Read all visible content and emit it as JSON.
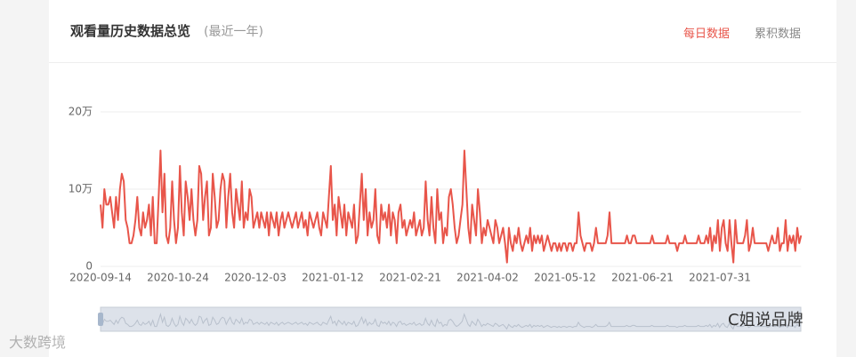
{
  "header": {
    "title": "观看量历史数据总览",
    "subtitle": "(最近一年)",
    "tabs": [
      "每日数据",
      "累积数据"
    ],
    "active_tab": 0
  },
  "watermarks": [
    "大数跨境",
    "C姐说品牌"
  ],
  "chart_data": {
    "type": "line",
    "color": "#e8554a",
    "categories": [
      "2020-09-14",
      null,
      null,
      null,
      null,
      null,
      null,
      null,
      null,
      null,
      null,
      null,
      null,
      null,
      null,
      null,
      null,
      null,
      null,
      null,
      null,
      null,
      null,
      null,
      null,
      null,
      null,
      null,
      null,
      null,
      null,
      null,
      null,
      null,
      null,
      null,
      null,
      null,
      null,
      null,
      "2020-10-24",
      null,
      null,
      null,
      null,
      null,
      null,
      null,
      null,
      null,
      null,
      null,
      null,
      null,
      null,
      null,
      null,
      null,
      null,
      null,
      null,
      null,
      null,
      null,
      null,
      null,
      null,
      null,
      null,
      null,
      null,
      null,
      null,
      null,
      null,
      null,
      null,
      null,
      null,
      null,
      "2020-12-03",
      null,
      null,
      null,
      null,
      null,
      null,
      null,
      null,
      null,
      null,
      null,
      null,
      null,
      null,
      null,
      null,
      null,
      null,
      null,
      null,
      null,
      null,
      null,
      null,
      null,
      null,
      null,
      null,
      null,
      null,
      null,
      null,
      null,
      null,
      null,
      null,
      null,
      null,
      null,
      "2021-01-12",
      null,
      null,
      null,
      null,
      null,
      null,
      null,
      null,
      null,
      null,
      null,
      null,
      null,
      null,
      null,
      null,
      null,
      null,
      null,
      null,
      null,
      null,
      null,
      null,
      null,
      null,
      null,
      null,
      null,
      null,
      null,
      null,
      null,
      null,
      null,
      null,
      null,
      null,
      null,
      "2021-02-21",
      null,
      null,
      null,
      null,
      null,
      null,
      null,
      null,
      null,
      null,
      null,
      null,
      null,
      null,
      null,
      null,
      null,
      null,
      null,
      null,
      null,
      null,
      null,
      null,
      null,
      null,
      null,
      null,
      null,
      null,
      null,
      null,
      null,
      null,
      null,
      null,
      null,
      null,
      null,
      "2021-04-02",
      null,
      null,
      null,
      null,
      null,
      null,
      null,
      null,
      null,
      null,
      null,
      null,
      null,
      null,
      null,
      null,
      null,
      null,
      null,
      null,
      null,
      null,
      null,
      null,
      null,
      null,
      null,
      null,
      null,
      null,
      null,
      null,
      null,
      null,
      null,
      null,
      null,
      null,
      null,
      "2021-05-12",
      null,
      null,
      null,
      null,
      null,
      null,
      null,
      null,
      null,
      null,
      null,
      null,
      null,
      null,
      null,
      null,
      null,
      null,
      null,
      null,
      null,
      null,
      null,
      null,
      null,
      null,
      null,
      null,
      null,
      null,
      null,
      null,
      null,
      null,
      null,
      null,
      null,
      null,
      null,
      "2021-06-21",
      null,
      null,
      null,
      null,
      null,
      null,
      null,
      null,
      null,
      null,
      null,
      null,
      null,
      null,
      null,
      null,
      null,
      null,
      null,
      null,
      null,
      null,
      null,
      null,
      null,
      null,
      null,
      null,
      null,
      null,
      null,
      null,
      null,
      null,
      null,
      null,
      null,
      null,
      null,
      "2021-07-31",
      null,
      null,
      null,
      null,
      null,
      null,
      null,
      null,
      null,
      null,
      null,
      null,
      null,
      null,
      null,
      null,
      null,
      null,
      null,
      null,
      null,
      null,
      null,
      null,
      null,
      null,
      null,
      null,
      null,
      null,
      null,
      null,
      null,
      null,
      null,
      null,
      null,
      null,
      null,
      null,
      null,
      null
    ],
    "values": [
      8,
      5,
      10,
      8,
      8,
      9,
      7,
      5,
      9,
      6,
      10,
      12,
      11,
      6,
      5,
      3,
      3,
      4,
      6,
      9,
      5,
      4,
      7,
      5,
      6,
      8,
      4,
      9,
      3,
      3,
      9,
      15,
      7,
      12,
      4,
      3,
      5,
      11,
      6,
      3,
      5,
      13,
      7,
      4,
      11,
      9,
      6,
      10,
      6,
      4,
      6,
      13,
      12,
      6,
      9,
      11,
      4,
      5,
      12,
      9,
      5,
      6,
      10,
      12,
      11,
      5,
      9,
      12,
      7,
      5,
      10,
      8,
      6,
      11,
      5,
      7,
      6,
      10,
      9,
      5,
      6,
      7,
      5,
      7,
      6,
      5,
      7,
      4,
      7,
      6,
      5,
      7,
      4,
      6,
      7,
      5,
      6,
      7,
      6,
      5,
      6,
      7,
      5,
      6,
      7,
      5,
      6,
      4,
      7,
      6,
      5,
      6,
      7,
      5,
      4,
      7,
      6,
      5,
      9,
      13,
      6,
      8,
      4,
      9,
      7,
      5,
      8,
      4,
      7,
      6,
      5,
      8,
      3,
      4,
      8,
      12,
      6,
      10,
      4,
      7,
      5,
      6,
      10,
      4,
      3,
      8,
      6,
      7,
      5,
      8,
      4,
      7,
      6,
      3,
      7,
      8,
      5,
      6,
      4,
      5,
      6,
      5,
      7,
      4,
      5,
      6,
      4,
      5,
      11,
      6,
      4,
      9,
      5,
      3,
      10,
      6,
      7,
      3,
      5,
      4,
      9,
      10,
      8,
      5,
      3,
      4,
      6,
      8,
      15,
      10,
      5,
      3,
      8,
      6,
      4,
      10,
      7,
      3,
      5,
      4,
      6,
      5,
      4,
      3,
      6,
      5,
      3,
      4,
      5,
      3,
      0.5,
      5,
      3,
      2,
      4,
      3,
      5,
      3,
      2,
      3,
      4,
      3,
      5,
      2,
      4,
      3,
      4,
      3,
      4,
      2,
      3,
      4,
      3,
      2,
      3,
      3,
      2,
      3,
      2,
      3,
      3,
      2,
      3,
      3,
      2,
      3,
      3,
      7,
      4,
      3,
      2,
      3,
      3,
      3,
      2,
      3,
      5,
      3,
      3,
      3,
      3,
      3,
      4,
      7,
      3,
      3,
      3,
      3,
      3,
      3,
      3,
      3,
      4,
      3,
      3,
      4,
      4,
      3,
      3,
      3,
      3,
      3,
      3,
      3,
      3,
      4,
      3,
      3,
      3,
      3,
      3,
      3,
      3,
      4,
      3,
      3,
      3,
      3,
      2,
      3,
      3,
      3,
      4,
      3,
      3,
      3,
      3,
      3,
      3,
      4,
      3,
      3,
      3,
      4,
      3,
      5,
      2,
      4,
      3,
      6,
      2,
      5,
      6,
      3,
      2,
      6,
      3,
      0.5,
      6,
      3,
      3,
      3,
      3,
      4,
      6,
      2,
      3,
      5,
      3,
      3,
      3,
      3,
      3,
      3,
      3,
      2,
      3,
      4,
      3,
      3,
      5,
      2,
      3,
      3,
      6,
      2,
      4,
      3,
      4,
      2,
      5,
      3,
      4
    ],
    "ylim": [
      0,
      20
    ],
    "yticks": [
      0,
      {
        "value": 10,
        "label": "10万"
      },
      {
        "value": 20,
        "label": "20万"
      }
    ],
    "grid": true
  }
}
